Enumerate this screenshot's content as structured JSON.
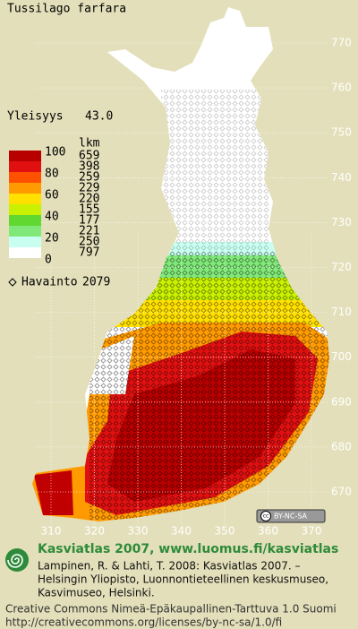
{
  "title": "Tussilago farfara",
  "frequency": {
    "label": "Yleisyys",
    "value": "43.0"
  },
  "legend": {
    "scale_labels": [
      "100",
      "80",
      "60",
      "40",
      "20",
      "0"
    ],
    "count_header": "lkm",
    "counts": [
      "659",
      "398",
      "259",
      "229",
      "220",
      "155",
      "177",
      "221",
      "250",
      "797"
    ],
    "colors": [
      "#b80000",
      "#e01010",
      "#ff5000",
      "#ff9a00",
      "#ffe000",
      "#c8f000",
      "#60d830",
      "#80e878",
      "#c8fff0",
      "#ffffff"
    ]
  },
  "observations": {
    "label": "Havainto",
    "value": "2079"
  },
  "grid": {
    "y_labels": [
      "770",
      "760",
      "750",
      "740",
      "730",
      "720",
      "710",
      "700",
      "690",
      "680",
      "670"
    ],
    "x_labels": [
      "310",
      "320",
      "330",
      "340",
      "350",
      "360",
      "370"
    ]
  },
  "badge": {
    "icon": "cc",
    "text": "BY-NC-SA"
  },
  "footer": {
    "heading": "Kasviatlas 2007, www.luomus.fi/kasviatlas",
    "citation": [
      "Lampinen, R. & Lahti, T. 2008: Kasviatlas 2007. –",
      "Helsingin Yliopisto, Luonnontieteellinen keskusmuseo,",
      "Kasvimuseo, Helsinki."
    ],
    "license": [
      "Creative Commons Nimeä-Epäkaupallinen-Tarttuva 1.0 Suomi",
      "http://creativecommons.org/licenses/by-nc-sa/1.0/fi"
    ]
  }
}
